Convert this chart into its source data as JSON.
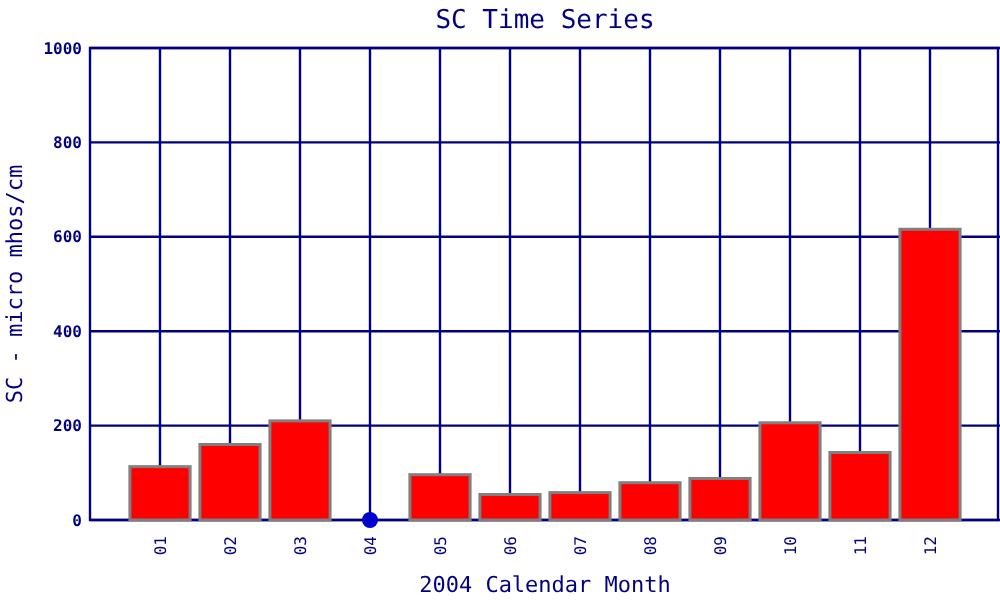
{
  "chart_data": {
    "type": "bar",
    "title": "SC Time Series",
    "xlabel": "2004 Calendar Month",
    "ylabel": "SC - micro mhos/cm",
    "categories": [
      "01",
      "02",
      "03",
      "04",
      "05",
      "06",
      "07",
      "08",
      "09",
      "10",
      "11",
      "12"
    ],
    "series": [
      {
        "type": "bar",
        "color": "#ff0000",
        "values": [
          113,
          160,
          210,
          null,
          96,
          54,
          58,
          79,
          88,
          206,
          143,
          616
        ]
      },
      {
        "type": "scatter",
        "color": "#0000cc",
        "x": [
          "04"
        ],
        "values": [
          0
        ]
      }
    ],
    "ylim": [
      0,
      1000
    ],
    "yticks": [
      0,
      200,
      400,
      600,
      800,
      1000
    ],
    "grid": true,
    "marker": "circle"
  }
}
